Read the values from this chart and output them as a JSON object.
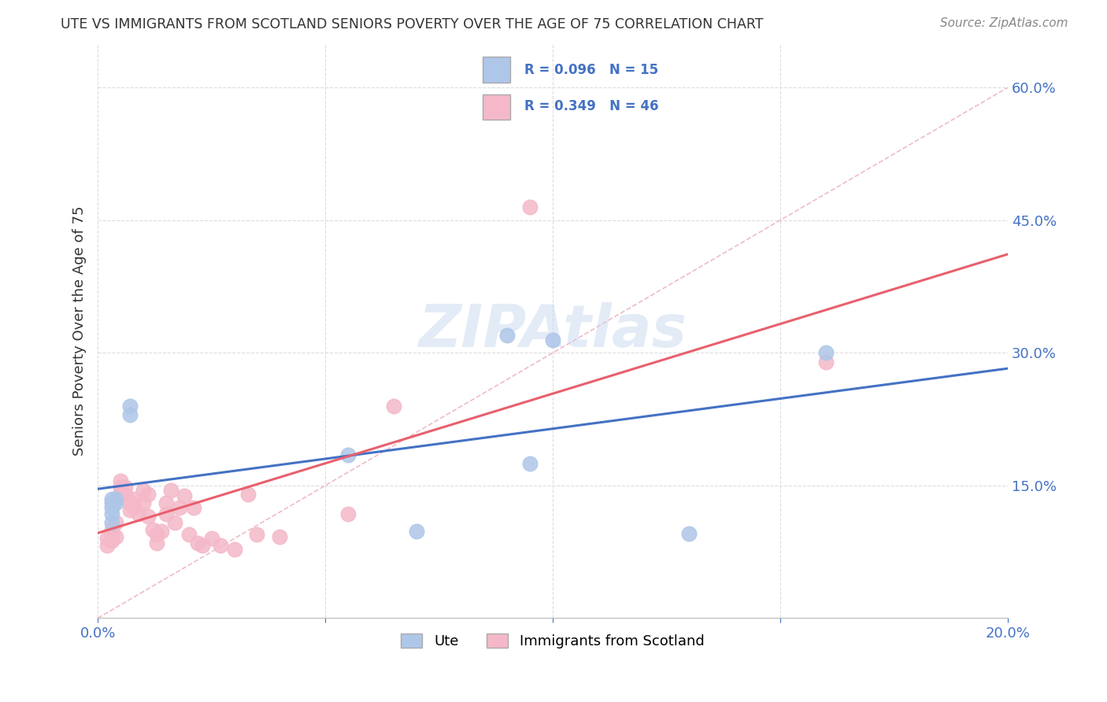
{
  "title": "UTE VS IMMIGRANTS FROM SCOTLAND SENIORS POVERTY OVER THE AGE OF 75 CORRELATION CHART",
  "source": "Source: ZipAtlas.com",
  "ylabel": "Seniors Poverty Over the Age of 75",
  "xlim": [
    0.0,
    0.2
  ],
  "ylim": [
    0.0,
    0.65
  ],
  "xticks": [
    0.0,
    0.05,
    0.1,
    0.15,
    0.2
  ],
  "yticks": [
    0.15,
    0.3,
    0.45,
    0.6
  ],
  "ytick_labels": [
    "15.0%",
    "30.0%",
    "45.0%",
    "60.0%"
  ],
  "xtick_labels": [
    "0.0%",
    "",
    "",
    "",
    "20.0%"
  ],
  "background_color": "#ffffff",
  "ute_color": "#aec6e8",
  "scotland_color": "#f4b8c8",
  "ute_line_color": "#4472c4",
  "scotland_line_color": "#e8606e",
  "diag_line_color": "#e8a0b0",
  "text_color": "#4472c4",
  "title_color": "#333333",
  "source_color": "#888888",
  "grid_color": "#dddddd",
  "ute_scatter_x": [
    0.003,
    0.003,
    0.003,
    0.003,
    0.003,
    0.004,
    0.004,
    0.007,
    0.007,
    0.055,
    0.07,
    0.09,
    0.1,
    0.095,
    0.13,
    0.16
  ],
  "ute_scatter_y": [
    0.135,
    0.13,
    0.125,
    0.118,
    0.108,
    0.13,
    0.135,
    0.24,
    0.23,
    0.185,
    0.098,
    0.32,
    0.315,
    0.175,
    0.096,
    0.3
  ],
  "scotland_scatter_x": [
    0.002,
    0.002,
    0.003,
    0.003,
    0.003,
    0.004,
    0.004,
    0.005,
    0.005,
    0.005,
    0.005,
    0.006,
    0.006,
    0.007,
    0.007,
    0.008,
    0.008,
    0.009,
    0.01,
    0.01,
    0.011,
    0.011,
    0.012,
    0.013,
    0.013,
    0.014,
    0.015,
    0.015,
    0.016,
    0.017,
    0.018,
    0.019,
    0.02,
    0.021,
    0.022,
    0.023,
    0.025,
    0.027,
    0.03,
    0.033,
    0.035,
    0.04,
    0.055,
    0.065,
    0.095,
    0.16
  ],
  "scotland_scatter_y": [
    0.09,
    0.082,
    0.1,
    0.095,
    0.088,
    0.108,
    0.092,
    0.155,
    0.148,
    0.142,
    0.138,
    0.148,
    0.14,
    0.122,
    0.13,
    0.135,
    0.125,
    0.118,
    0.145,
    0.13,
    0.115,
    0.14,
    0.1,
    0.095,
    0.085,
    0.098,
    0.13,
    0.118,
    0.145,
    0.108,
    0.125,
    0.138,
    0.095,
    0.125,
    0.085,
    0.082,
    0.09,
    0.082,
    0.078,
    0.14,
    0.095,
    0.092,
    0.118,
    0.24,
    0.465,
    0.29
  ]
}
